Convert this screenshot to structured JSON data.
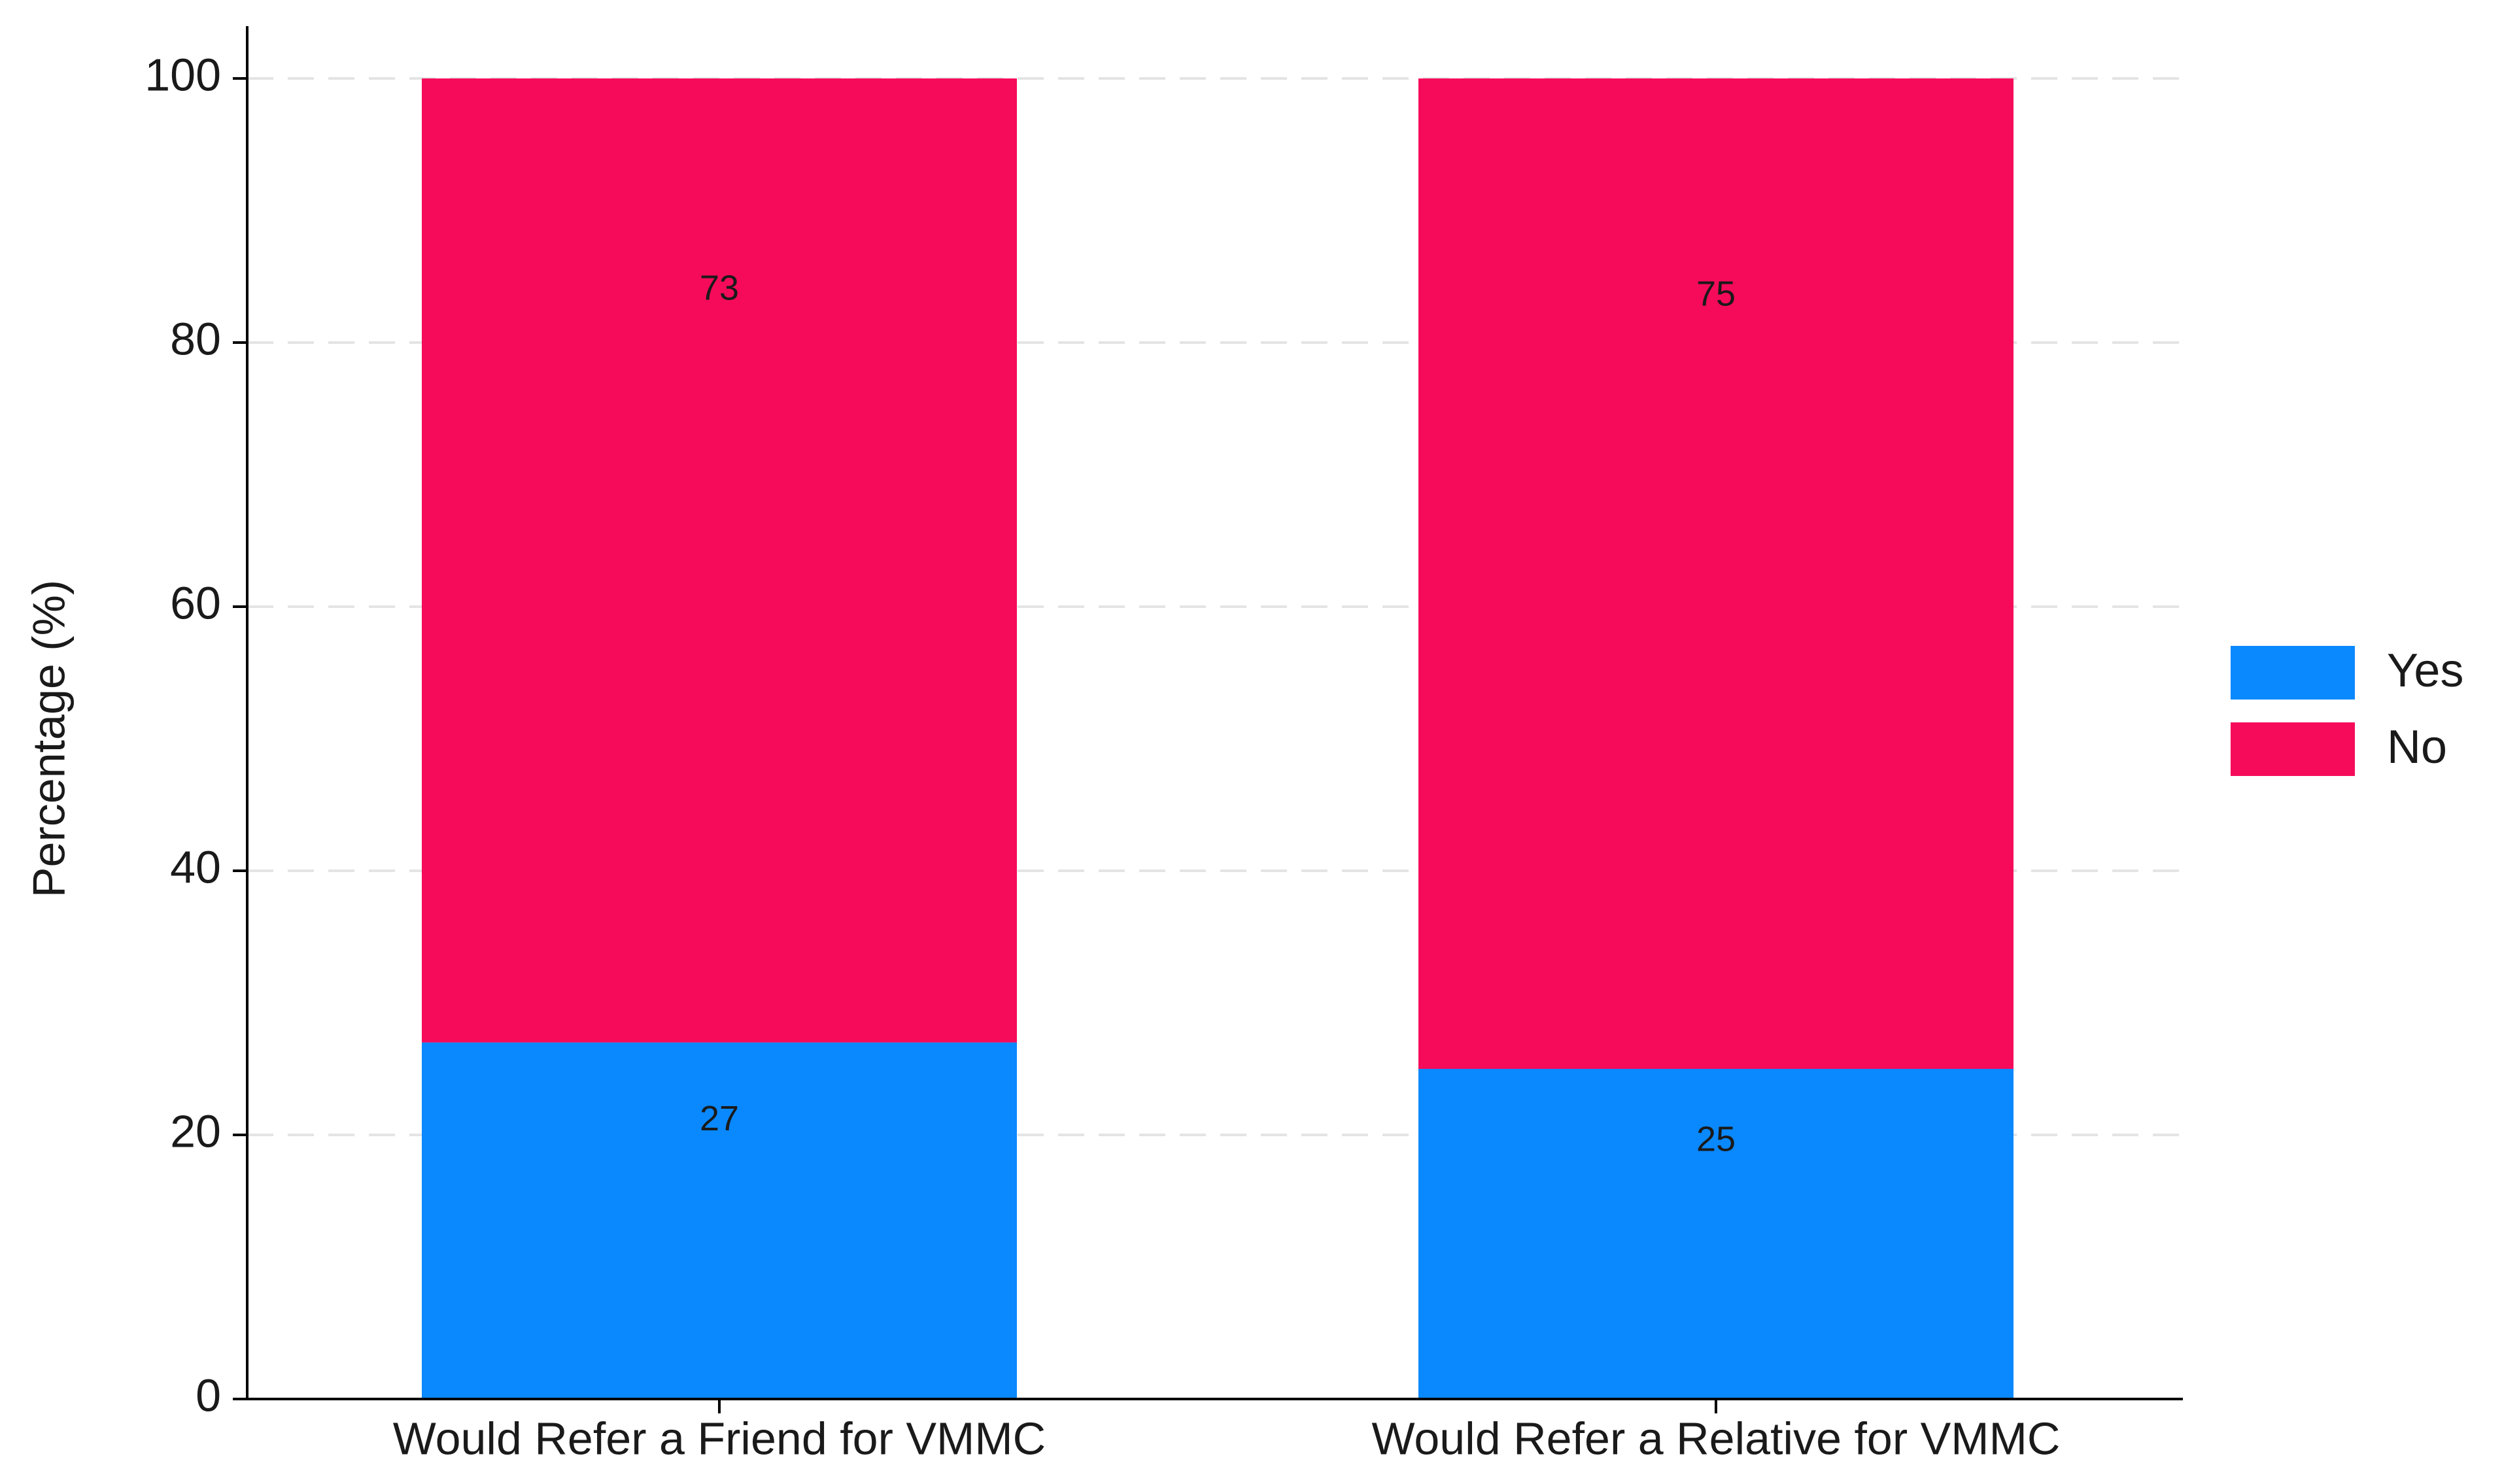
{
  "chart_data": {
    "type": "stacked_bar",
    "y_label": "Percentage (%)",
    "categories": [
      "Would Refer a Friend for VMMC",
      "Would Refer a Relative for VMMC"
    ],
    "series": [
      {
        "name": "Yes",
        "color": "#0a88fe",
        "values": [
          27,
          25
        ]
      },
      {
        "name": "No",
        "color": "#f50b5a",
        "values": [
          73,
          75
        ]
      }
    ],
    "ylim": [
      0,
      100
    ],
    "yticks": [
      0,
      20,
      40,
      60,
      80,
      100
    ],
    "grid": true,
    "legend": "right"
  }
}
